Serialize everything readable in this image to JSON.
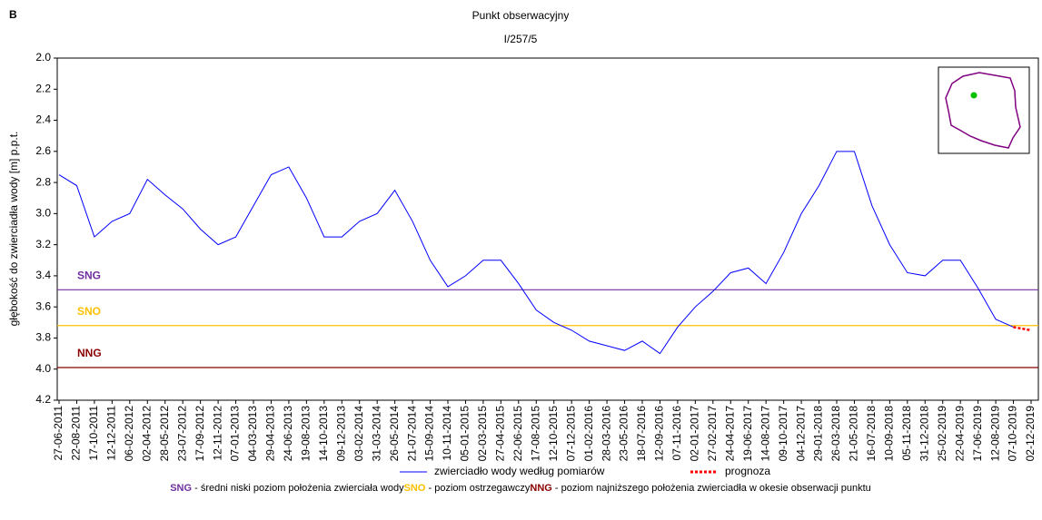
{
  "chart_data": {
    "type": "line",
    "panel": "B",
    "title": "Punkt obserwacyjny",
    "subtitle": "I/257/5",
    "y_label": "głębokość do zwierciadła wody [m] p.p.t.",
    "y_inverted": true,
    "ylim": [
      2.0,
      4.2
    ],
    "yticks": [
      {
        "value": 2.0,
        "label": "2.0"
      },
      {
        "value": 2.2,
        "label": "2.2"
      },
      {
        "value": 2.4,
        "label": "2.4"
      },
      {
        "value": 2.6,
        "label": "2.6"
      },
      {
        "value": 2.8,
        "label": "2.8"
      },
      {
        "value": 3.0,
        "label": "3.0"
      },
      {
        "value": 3.2,
        "label": "3.2"
      },
      {
        "value": 3.4,
        "label": "3.4"
      },
      {
        "value": 3.6,
        "label": "3.6"
      },
      {
        "value": 3.8,
        "label": "3.8"
      },
      {
        "value": 4.0,
        "label": "4.0"
      },
      {
        "value": 4.2,
        "label": "4.2"
      }
    ],
    "categories": [
      "27-06-2011",
      "22-08-2011",
      "17-10-2011",
      "12-12-2011",
      "06-02-2012",
      "02-04-2012",
      "28-05-2012",
      "23-07-2012",
      "17-09-2012",
      "12-11-2012",
      "07-01-2013",
      "04-03-2013",
      "29-04-2013",
      "24-06-2013",
      "19-08-2013",
      "14-10-2013",
      "09-12-2013",
      "03-02-2014",
      "31-03-2014",
      "26-05-2014",
      "21-07-2014",
      "15-09-2014",
      "10-11-2014",
      "05-01-2015",
      "02-03-2015",
      "27-04-2015",
      "22-06-2015",
      "17-08-2015",
      "12-10-2015",
      "07-12-2015",
      "01-02-2016",
      "28-03-2016",
      "23-05-2016",
      "18-07-2016",
      "12-09-2016",
      "07-11-2016",
      "02-01-2017",
      "27-02-2017",
      "24-04-2017",
      "19-06-2017",
      "14-08-2017",
      "09-10-2017",
      "04-12-2017",
      "29-01-2018",
      "26-03-2018",
      "21-05-2018",
      "16-07-2018",
      "10-09-2018",
      "05-11-2018",
      "31-12-2018",
      "25-02-2019",
      "22-04-2019",
      "17-06-2019",
      "12-08-2019",
      "07-10-2019",
      "02-12-2019"
    ],
    "series": [
      {
        "name": "zwierciadło wody według pomiarów",
        "color": "#0000ff",
        "dash": false,
        "values": [
          2.75,
          2.82,
          3.15,
          3.05,
          3.0,
          2.78,
          2.88,
          2.97,
          3.1,
          3.2,
          3.15,
          2.95,
          2.75,
          2.7,
          2.9,
          3.15,
          3.15,
          3.05,
          3.0,
          2.85,
          3.05,
          3.3,
          3.47,
          3.4,
          3.3,
          3.3,
          3.45,
          3.62,
          3.7,
          3.75,
          3.82,
          3.85,
          3.88,
          3.82,
          3.9,
          3.73,
          3.6,
          3.5,
          3.38,
          3.35,
          3.45,
          3.25,
          3.0,
          2.82,
          2.6,
          2.6,
          2.95,
          3.2,
          3.38,
          3.4,
          3.3,
          3.3,
          3.48,
          3.68,
          3.73,
          null
        ]
      },
      {
        "name": "prognoza",
        "color": "#ff0000",
        "dash": true,
        "values": [
          null,
          null,
          null,
          null,
          null,
          null,
          null,
          null,
          null,
          null,
          null,
          null,
          null,
          null,
          null,
          null,
          null,
          null,
          null,
          null,
          null,
          null,
          null,
          null,
          null,
          null,
          null,
          null,
          null,
          null,
          null,
          null,
          null,
          null,
          null,
          null,
          null,
          null,
          null,
          null,
          null,
          null,
          null,
          null,
          null,
          null,
          null,
          null,
          null,
          null,
          null,
          null,
          null,
          null,
          3.73,
          3.75
        ]
      }
    ],
    "reference_lines": [
      {
        "label": "SNG",
        "value": 3.49,
        "color": "#7030a0"
      },
      {
        "label": "SNO",
        "value": 3.72,
        "color": "#ffc000"
      },
      {
        "label": "NNG",
        "value": 3.99,
        "color": "#8b0000"
      }
    ],
    "notes": [
      {
        "abbr": "SNG",
        "text": " - średni niski poziom położenia zwierciała wody",
        "color": "#7030a0"
      },
      {
        "abbr": "SNO",
        "text": " - poziom ostrzegawczy",
        "color": "#ffc000"
      },
      {
        "abbr": "NNG",
        "text": " - poziom najniższego położenia zwierciadła w okesie obserwacji punktu",
        "color": "#8b0000"
      }
    ]
  }
}
